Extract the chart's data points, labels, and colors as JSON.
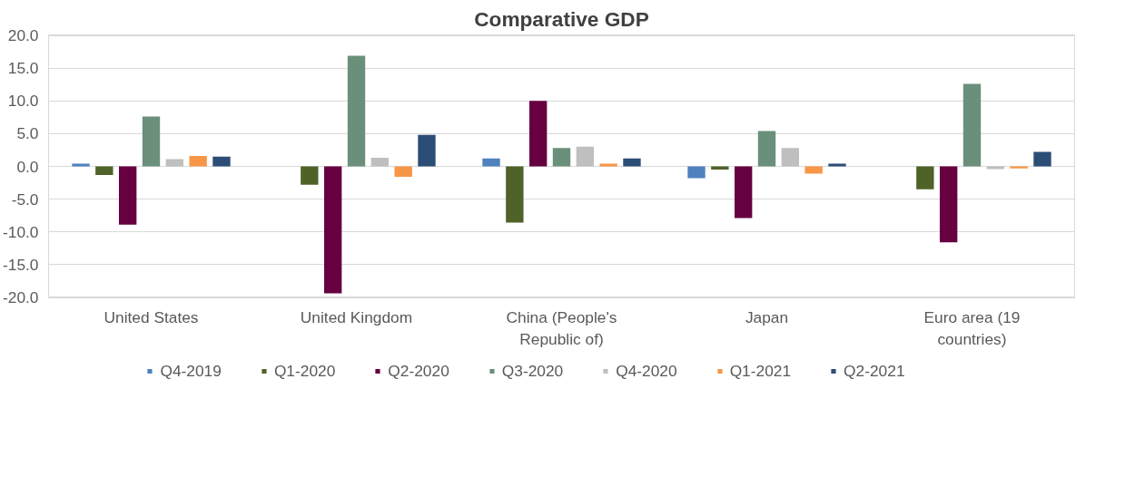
{
  "chart_data": {
    "type": "bar",
    "title": "Comparative GDP",
    "categories": [
      "United States",
      "United Kingdom",
      "China (People's Republic of)",
      "Japan",
      "Euro area (19 countries)"
    ],
    "series": [
      {
        "name": "Q4-2019",
        "color": "#4f81bd",
        "values": [
          0.4,
          0.0,
          1.2,
          -1.8,
          null
        ]
      },
      {
        "name": "Q1-2020",
        "color": "#4f6228",
        "values": [
          -1.3,
          -2.8,
          -8.6,
          -0.5,
          -3.5
        ]
      },
      {
        "name": "Q2-2020",
        "color": "#660040",
        "values": [
          -8.9,
          -19.4,
          10.0,
          -7.9,
          -11.6
        ]
      },
      {
        "name": "Q3-2020",
        "color": "#6a8f7a",
        "values": [
          7.6,
          16.9,
          2.8,
          5.4,
          12.6
        ]
      },
      {
        "name": "Q4-2020",
        "color": "#bfbfbf",
        "values": [
          1.1,
          1.3,
          3.0,
          2.8,
          -0.4
        ]
      },
      {
        "name": "Q1-2021",
        "color": "#f79646",
        "values": [
          1.6,
          -1.6,
          0.4,
          -1.1,
          -0.3
        ]
      },
      {
        "name": "Q2-2021",
        "color": "#2c4d75",
        "values": [
          1.5,
          4.8,
          1.2,
          0.4,
          2.2
        ]
      }
    ],
    "ylim": [
      -20,
      20
    ],
    "yticks": [
      {
        "value": -20,
        "label": "-20.0"
      },
      {
        "value": -15,
        "label": "-15.0"
      },
      {
        "value": -10,
        "label": "-10.0"
      },
      {
        "value": -5,
        "label": "-5.0"
      },
      {
        "value": 0,
        "label": "0.0"
      },
      {
        "value": 5,
        "label": "5.0"
      },
      {
        "value": 10,
        "label": "10.0"
      },
      {
        "value": 15,
        "label": "15.0"
      },
      {
        "value": 20,
        "label": "20.0"
      }
    ],
    "grid": "y",
    "legend": "bottom"
  }
}
